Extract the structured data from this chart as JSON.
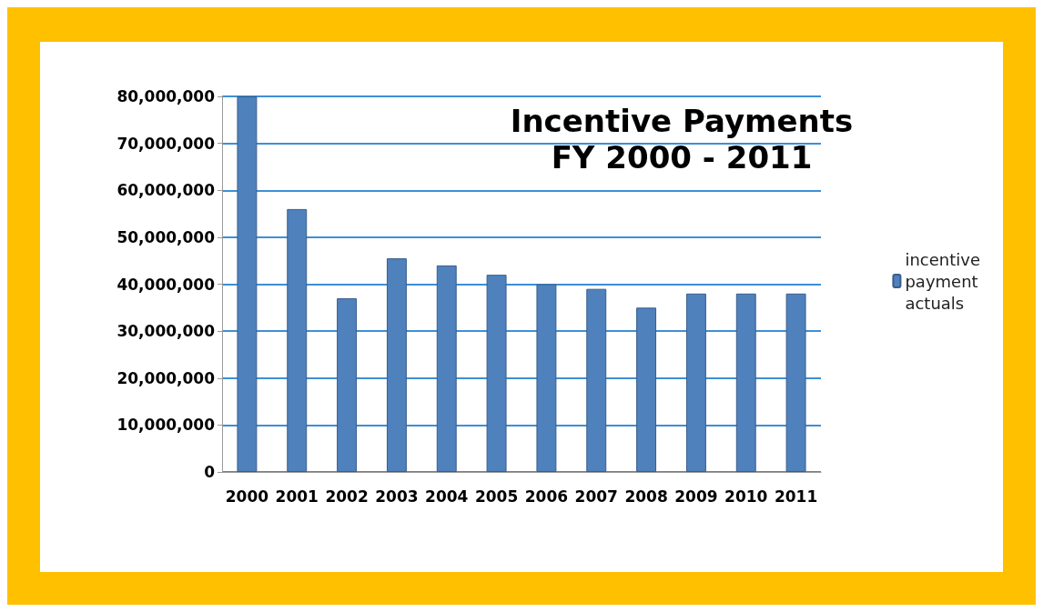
{
  "chart_data": {
    "type": "bar",
    "title": "Incentive Payments",
    "subtitle": "FY 2000 - 2011",
    "categories": [
      "2000",
      "2001",
      "2002",
      "2003",
      "2004",
      "2005",
      "2006",
      "2007",
      "2008",
      "2009",
      "2010",
      "2011"
    ],
    "series": [
      {
        "name": "incentive payment actuals",
        "color": "#4f81bd",
        "values": [
          80000000,
          56000000,
          37000000,
          45500000,
          44000000,
          42000000,
          40000000,
          39000000,
          35000000,
          38000000,
          38000000,
          38000000
        ]
      }
    ],
    "ylim": [
      0,
      80000000
    ],
    "yticks": [
      0,
      {
        "value": 10000000,
        "label": "10,000,000"
      },
      {
        "value": 20000000,
        "label": "20,000,000"
      },
      {
        "value": 30000000,
        "label": "30,000,000"
      },
      {
        "value": 40000000,
        "label": "40,000,000"
      },
      {
        "value": 50000000,
        "label": "50,000,000"
      },
      {
        "value": 60000000,
        "label": "60,000,000"
      },
      {
        "value": 70000000,
        "label": "70,000,000"
      },
      {
        "value": 80000000,
        "label": "80,000,000"
      }
    ],
    "grid": "y",
    "legend": "right"
  }
}
